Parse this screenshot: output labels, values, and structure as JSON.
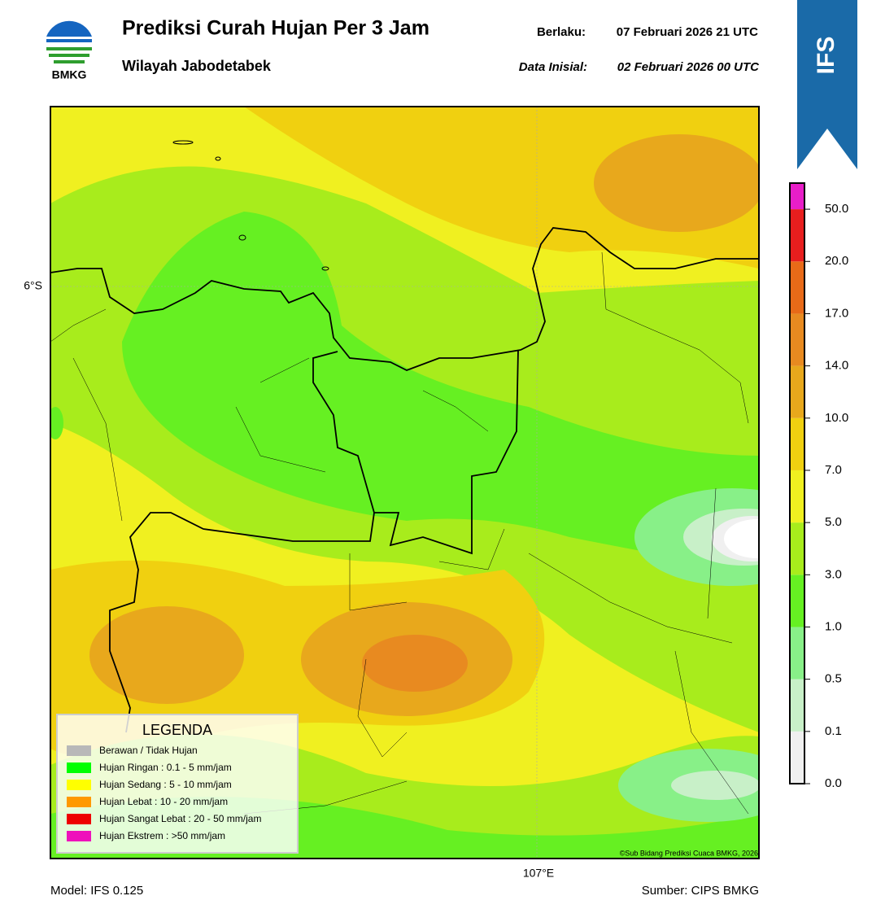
{
  "header": {
    "logo_text": "BMKG",
    "title": "Prediksi Curah Hujan Per 3 Jam",
    "subtitle": "Wilayah Jabodetabek",
    "valid_label": "Berlaku:",
    "valid_time": "07 Februari 2026 21 UTC",
    "init_label": "Data Inisial:",
    "init_time": "02 Februari 2026 00 UTC",
    "badge": "IFS"
  },
  "map": {
    "lat_label": "6°S",
    "lon_label": "107°E",
    "credit": "©Sub Bidang Prediksi Cuaca BMKG, 2026"
  },
  "legend": {
    "title": "LEGENDA",
    "items": [
      {
        "label": "Berawan / Tidak Hujan",
        "color": "#b8b8b8"
      },
      {
        "label": "Hujan Ringan : 0.1 - 5 mm/jam",
        "color": "#00ff00"
      },
      {
        "label": "Hujan Sedang : 5 - 10 mm/jam",
        "color": "#ffff00"
      },
      {
        "label": "Hujan Lebat : 10 - 20 mm/jam",
        "color": "#ff9900"
      },
      {
        "label": "Hujan Sangat Lebat : 20 - 50 mm/jam",
        "color": "#ee0000"
      },
      {
        "label": "Hujan Ekstrem : >50 mm/jam",
        "color": "#ee11bb"
      }
    ]
  },
  "colorbar": {
    "colors": [
      "#f0f0f0",
      "#c8f0c8",
      "#88f088",
      "#66f022",
      "#a8ec1c",
      "#f0f020",
      "#f0d010",
      "#e8a81c",
      "#e88a20",
      "#e86a18",
      "#e81e1e",
      "#e81ec8"
    ],
    "labels": [
      "0.0",
      "0.1",
      "0.5",
      "1.0",
      "3.0",
      "5.0",
      "7.0",
      "10.0",
      "14.0",
      "17.0",
      "20.0",
      "50.0"
    ]
  },
  "footer": {
    "model": "Model: IFS 0.125",
    "source": "Sumber: CIPS BMKG"
  }
}
